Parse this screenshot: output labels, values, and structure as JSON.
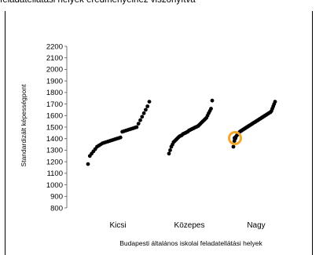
{
  "title": "feladatellátási helyek eredményeihez viszonyítva",
  "chart_data": {
    "type": "scatter",
    "xlabel": "Budapesti általános iskolai feladatellátási helyek",
    "ylabel": "Standardizált képességpont",
    "ylim": [
      800,
      2200
    ],
    "ytick_step": 100,
    "yticks": [
      "800",
      "900",
      "1000",
      "1100",
      "1200",
      "1300",
      "1400",
      "1500",
      "1600",
      "1700",
      "1800",
      "1900",
      "2000",
      "2100",
      "2200"
    ],
    "categories": [
      "Kicsi",
      "Közepes",
      "Nagy"
    ],
    "grid": false,
    "point_color": "#000000",
    "highlight_color": "#f5a623",
    "highlight": {
      "category": "Nagy",
      "y": 1405
    },
    "series": [
      {
        "values": [
          1180,
          1250,
          1270,
          1290,
          1310,
          1330,
          1340,
          1350,
          1360,
          1365,
          1370,
          1375,
          1380,
          1385,
          1390,
          1395,
          1400,
          1405,
          1410,
          1460,
          1465,
          1470,
          1475,
          1480,
          1485,
          1490,
          1495,
          1500,
          1530,
          1560,
          1590,
          1620,
          1650,
          1680,
          1720
        ]
      },
      {
        "values": [
          1270,
          1300,
          1330,
          1350,
          1370,
          1380,
          1390,
          1400,
          1410,
          1420,
          1425,
          1430,
          1440,
          1445,
          1450,
          1455,
          1460,
          1470,
          1475,
          1480,
          1485,
          1490,
          1495,
          1500,
          1505,
          1510,
          1520,
          1530,
          1540,
          1550,
          1560,
          1570,
          1580,
          1600,
          1620,
          1640,
          1660,
          1730
        ]
      },
      {
        "values": [
          1330,
          1380,
          1400,
          1420,
          1430,
          1440,
          1450,
          1460,
          1465,
          1470,
          1475,
          1480,
          1485,
          1490,
          1495,
          1500,
          1505,
          1510,
          1515,
          1520,
          1525,
          1530,
          1535,
          1540,
          1545,
          1550,
          1555,
          1560,
          1565,
          1570,
          1575,
          1580,
          1585,
          1590,
          1595,
          1600,
          1605,
          1610,
          1615,
          1620,
          1625,
          1630,
          1640,
          1660,
          1680,
          1700,
          1720
        ]
      }
    ]
  }
}
